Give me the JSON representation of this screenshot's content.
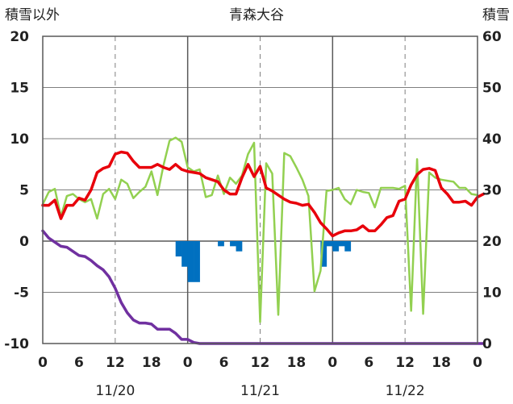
{
  "chart_data": {
    "type": "line",
    "title": "青森大谷",
    "left_axis": {
      "label": "積雪以外",
      "range": [
        -10,
        20
      ],
      "ticks": [
        "20",
        "15",
        "10",
        "5",
        "0",
        "-5",
        "-10"
      ]
    },
    "right_axis": {
      "label": "積雪",
      "range": [
        0,
        60
      ],
      "ticks": [
        "60",
        "50",
        "40",
        "30",
        "20",
        "10",
        "0"
      ]
    },
    "x_ticks": [
      "0",
      "6",
      "12",
      "18",
      "0",
      "6",
      "12",
      "18",
      "0",
      "6",
      "12",
      "18",
      "0"
    ],
    "x_range_hours": [
      0,
      72
    ],
    "date_labels": [
      "11/20",
      "11/21",
      "11/22"
    ],
    "grid": true,
    "colors": {
      "red": "#e8000b",
      "green": "#92d050",
      "purple": "#7030a0",
      "blue": "#0070c0",
      "frame": "#595959"
    },
    "series": [
      {
        "color": "#e8000b",
        "axis": "left",
        "values": [
          3.5,
          3.5,
          4.0,
          2.2,
          3.5,
          3.5,
          4.2,
          4.0,
          5.0,
          6.7,
          7.1,
          7.3,
          8.5,
          8.7,
          8.6,
          7.8,
          7.2,
          7.2,
          7.2,
          7.5,
          7.2,
          7.0,
          7.5,
          7.0,
          6.8,
          6.7,
          6.6,
          6.2,
          6.0,
          5.8,
          5.0,
          4.6,
          4.6,
          6.2,
          7.5,
          6.3,
          7.3,
          5.2,
          4.9,
          4.5,
          4.1,
          3.8,
          3.7,
          3.5,
          3.6,
          2.8,
          1.8,
          1.2,
          0.5,
          0.8,
          1.0,
          1.0,
          1.1,
          1.5,
          1.0,
          1.0,
          1.6,
          2.3,
          2.5,
          3.9,
          4.1,
          5.5,
          6.5,
          7.0,
          7.1,
          6.9,
          5.2,
          4.6,
          3.8,
          3.8,
          3.9,
          3.5,
          4.3,
          4.6
        ]
      },
      {
        "color": "#92d050",
        "axis": "left",
        "values": [
          3.6,
          4.8,
          5.1,
          2.4,
          4.4,
          4.6,
          4.1,
          3.8,
          4.1,
          2.2,
          4.6,
          5.1,
          4.1,
          6.0,
          5.6,
          4.2,
          4.8,
          5.3,
          6.8,
          4.5,
          7.4,
          9.8,
          10.1,
          9.7,
          7.2,
          6.8,
          7.0,
          4.3,
          4.5,
          6.4,
          4.6,
          6.2,
          5.6,
          6.4,
          8.5,
          9.6,
          -7.9,
          7.6,
          6.6,
          -7.2,
          8.6,
          8.3,
          7.2,
          6.0,
          4.4,
          -4.9,
          -2.9,
          4.9,
          5.0,
          5.2,
          4.1,
          3.6,
          5.0,
          4.8,
          4.7,
          3.3,
          5.2,
          5.2,
          5.2,
          5.1,
          5.4,
          -6.8,
          8.0,
          -7.1,
          6.7,
          6.2,
          6.0,
          5.9,
          5.8,
          5.2,
          5.2,
          4.6,
          4.5
        ]
      },
      {
        "color": "#7030a0",
        "axis": "left",
        "values": [
          1.0,
          0.3,
          -0.1,
          -0.5,
          -0.6,
          -1.0,
          -1.4,
          -1.5,
          -1.9,
          -2.4,
          -2.8,
          -3.5,
          -4.6,
          -6.0,
          -7.0,
          -7.7,
          -8.0,
          -8.0,
          -8.1,
          -8.6,
          -8.6,
          -8.6,
          -9.0,
          -9.6,
          -9.6,
          -9.9,
          -10,
          -10,
          -10,
          -10,
          -10,
          -10,
          -10,
          -10,
          -10,
          -10,
          -10,
          -10,
          -10,
          -10,
          -10,
          -10,
          -10,
          -10,
          -10,
          -10,
          -10,
          -10,
          -10,
          -10,
          -10,
          -10,
          -10,
          -10,
          -10,
          -10,
          -10,
          -10,
          -10,
          -10,
          -10,
          -10,
          -10,
          -10,
          -10,
          -10,
          -10,
          -10,
          -10,
          -10,
          -10,
          -10,
          -10,
          -10
        ]
      },
      {
        "color": "#0070c0",
        "type": "bar",
        "axis": "left",
        "bars": [
          [
            22,
            -1.5
          ],
          [
            23,
            -2.5
          ],
          [
            24,
            -4.0
          ],
          [
            25,
            -4.0
          ],
          [
            29,
            -0.5
          ],
          [
            31,
            -0.5
          ],
          [
            32,
            -1.0
          ],
          [
            46,
            -2.5
          ],
          [
            47,
            -0.5
          ],
          [
            48,
            -1.0
          ],
          [
            49,
            -0.5
          ],
          [
            50,
            -1.0
          ]
        ]
      }
    ]
  }
}
